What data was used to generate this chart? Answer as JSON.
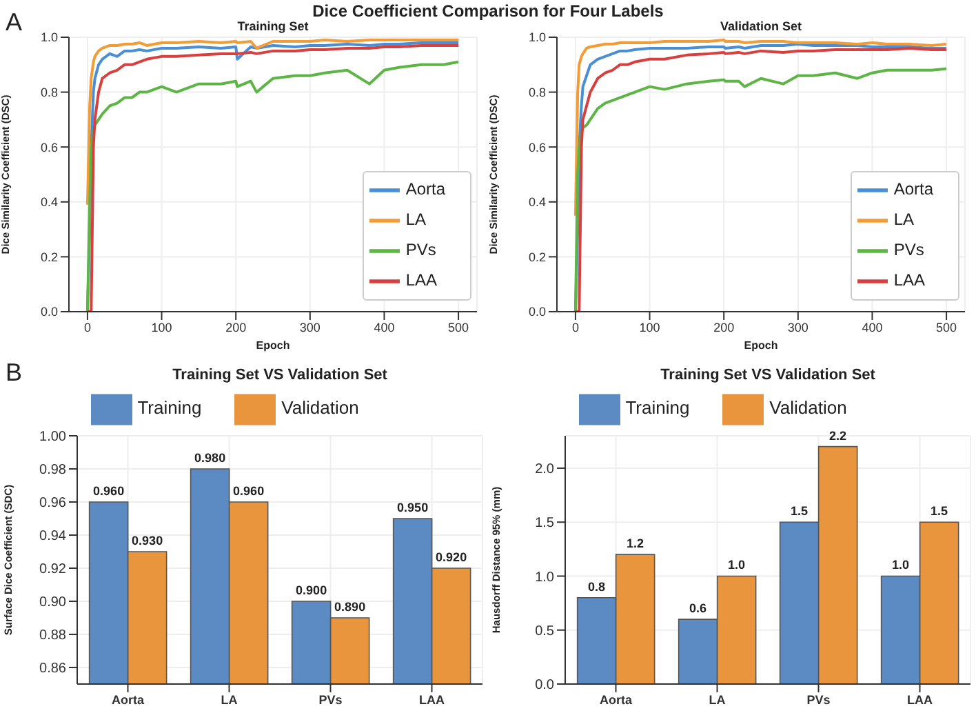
{
  "chart_data": [
    {
      "type": "line",
      "title": "Dice Coefficient Comparison for Four Labels",
      "subtitle": "Training Set",
      "xlabel": "Epoch",
      "ylabel": "Dice Similarity Coefficient (DSC)",
      "annotations": [
        "A"
      ],
      "x": [
        0,
        3,
        5,
        8,
        10,
        15,
        20,
        30,
        40,
        50,
        60,
        70,
        80,
        100,
        120,
        150,
        180,
        200,
        202,
        220,
        228,
        250,
        280,
        300,
        320,
        350,
        380,
        400,
        420,
        450,
        480,
        500
      ],
      "series": [
        {
          "name": "Aorta",
          "color": "#4a8fd6",
          "values": [
            0,
            0.3,
            0.6,
            0.8,
            0.85,
            0.9,
            0.92,
            0.94,
            0.93,
            0.95,
            0.95,
            0.955,
            0.95,
            0.96,
            0.96,
            0.965,
            0.96,
            0.965,
            0.92,
            0.965,
            0.96,
            0.97,
            0.965,
            0.97,
            0.97,
            0.975,
            0.97,
            0.975,
            0.975,
            0.98,
            0.98,
            0.98
          ]
        },
        {
          "name": "LA",
          "color": "#f29c38",
          "values": [
            0.39,
            0.75,
            0.85,
            0.91,
            0.93,
            0.95,
            0.96,
            0.97,
            0.97,
            0.975,
            0.975,
            0.98,
            0.97,
            0.98,
            0.98,
            0.985,
            0.98,
            0.985,
            0.98,
            0.985,
            0.96,
            0.985,
            0.985,
            0.985,
            0.99,
            0.985,
            0.99,
            0.99,
            0.99,
            0.99,
            0.99,
            0.99
          ]
        },
        {
          "name": "PVs",
          "color": "#5cb545",
          "values": [
            0,
            0.39,
            0.6,
            0.65,
            0.68,
            0.7,
            0.72,
            0.75,
            0.76,
            0.78,
            0.78,
            0.8,
            0.8,
            0.82,
            0.8,
            0.83,
            0.83,
            0.84,
            0.82,
            0.84,
            0.8,
            0.85,
            0.86,
            0.86,
            0.87,
            0.88,
            0.83,
            0.88,
            0.89,
            0.9,
            0.9,
            0.91
          ]
        },
        {
          "name": "LAA",
          "color": "#d8403f",
          "values": [
            0,
            0,
            0,
            0.6,
            0.7,
            0.8,
            0.85,
            0.87,
            0.88,
            0.9,
            0.9,
            0.91,
            0.92,
            0.93,
            0.93,
            0.935,
            0.94,
            0.94,
            0.94,
            0.945,
            0.94,
            0.95,
            0.95,
            0.955,
            0.955,
            0.96,
            0.96,
            0.965,
            0.965,
            0.97,
            0.97,
            0.97
          ]
        }
      ],
      "xlim": [
        -25,
        525
      ],
      "xticks": [
        0,
        100,
        200,
        300,
        400,
        500
      ],
      "ylim": [
        0,
        1
      ],
      "yticks": [
        {
          "value": 0,
          "label": "0.0"
        },
        0.2,
        0.4,
        0.6,
        0.8,
        {
          "value": 1,
          "label": "1.0"
        }
      ],
      "grid": true,
      "legend": "bottom right",
      "marker": "none",
      "line_style": "solid"
    },
    {
      "type": "line",
      "title": "Validation Set",
      "xlabel": "Epoch",
      "ylabel": "Dice Similarity Coefficient (DSC)",
      "x": [
        0,
        3,
        5,
        8,
        10,
        15,
        20,
        30,
        40,
        50,
        60,
        70,
        80,
        100,
        120,
        150,
        180,
        200,
        202,
        220,
        228,
        250,
        280,
        300,
        320,
        350,
        380,
        400,
        420,
        450,
        480,
        500
      ],
      "series": [
        {
          "name": "Aorta",
          "color": "#4a8fd6",
          "values": [
            0,
            0.3,
            0.6,
            0.75,
            0.82,
            0.86,
            0.9,
            0.92,
            0.93,
            0.94,
            0.95,
            0.95,
            0.955,
            0.96,
            0.96,
            0.96,
            0.965,
            0.965,
            0.96,
            0.965,
            0.96,
            0.97,
            0.97,
            0.975,
            0.97,
            0.97,
            0.97,
            0.965,
            0.965,
            0.965,
            0.96,
            0.96
          ]
        },
        {
          "name": "LA",
          "color": "#f29c38",
          "values": [
            0.35,
            0.8,
            0.9,
            0.93,
            0.94,
            0.96,
            0.965,
            0.97,
            0.975,
            0.975,
            0.98,
            0.98,
            0.98,
            0.98,
            0.985,
            0.985,
            0.985,
            0.99,
            0.985,
            0.985,
            0.98,
            0.985,
            0.985,
            0.98,
            0.98,
            0.98,
            0.975,
            0.98,
            0.975,
            0.975,
            0.97,
            0.975
          ]
        },
        {
          "name": "PVs",
          "color": "#5cb545",
          "values": [
            0,
            0.5,
            0.6,
            0.65,
            0.67,
            0.68,
            0.7,
            0.74,
            0.76,
            0.77,
            0.78,
            0.79,
            0.8,
            0.82,
            0.81,
            0.83,
            0.84,
            0.845,
            0.84,
            0.84,
            0.82,
            0.85,
            0.83,
            0.86,
            0.86,
            0.87,
            0.85,
            0.87,
            0.88,
            0.88,
            0.88,
            0.885
          ]
        },
        {
          "name": "LAA",
          "color": "#d8403f",
          "values": [
            0,
            0,
            0,
            0.6,
            0.7,
            0.75,
            0.8,
            0.85,
            0.87,
            0.88,
            0.9,
            0.9,
            0.91,
            0.92,
            0.92,
            0.935,
            0.94,
            0.945,
            0.94,
            0.945,
            0.94,
            0.95,
            0.945,
            0.95,
            0.95,
            0.955,
            0.955,
            0.955,
            0.955,
            0.96,
            0.955,
            0.955
          ]
        }
      ],
      "xlim": [
        -25,
        525
      ],
      "xticks": [
        0,
        100,
        200,
        300,
        400,
        500
      ],
      "ylim": [
        0,
        1
      ],
      "yticks": [
        {
          "value": 0,
          "label": "0.0"
        },
        0.2,
        0.4,
        0.6,
        0.8,
        {
          "value": 1,
          "label": "1.0"
        }
      ],
      "grid": true,
      "legend": "bottom right",
      "marker": "none",
      "line_style": "solid"
    },
    {
      "type": "bar",
      "title": "Training Set VS Validation Set",
      "ylabel": "Surface Dice Coefficient (SDC)",
      "annotations": [
        "B"
      ],
      "categories": [
        "Aorta",
        "LA",
        "PVs",
        "LAA"
      ],
      "series": [
        {
          "name": "Training",
          "color": "#5b8bc2",
          "values": [
            0.96,
            0.98,
            0.9,
            0.95
          ],
          "value_labels": [
            "0.960",
            "0.980",
            "0.900",
            "0.950"
          ]
        },
        {
          "name": "Validation",
          "color": "#e8953e",
          "values": [
            0.93,
            0.96,
            0.89,
            0.92
          ],
          "value_labels": [
            "0.930",
            "0.960",
            "0.890",
            "0.920"
          ]
        }
      ],
      "ylim": [
        0.85,
        1
      ],
      "yticks": [
        0.86,
        0.88,
        {
          "value": 0.9,
          "label": "0.90"
        },
        0.92,
        0.94,
        0.96,
        0.98,
        {
          "value": 1,
          "label": "1.00"
        }
      ],
      "grid": true,
      "legend": "top"
    },
    {
      "type": "bar",
      "title": "Training Set VS Validation Set",
      "ylabel": "Hausdorff Distance 95% (mm)",
      "categories": [
        "Aorta",
        "LA",
        "PVs",
        "LAA"
      ],
      "series": [
        {
          "name": "Training",
          "color": "#5b8bc2",
          "values": [
            0.8,
            0.6,
            1.5,
            1.0
          ],
          "value_labels": [
            "0.8",
            "0.6",
            "1.5",
            "1.0"
          ]
        },
        {
          "name": "Validation",
          "color": "#e8953e",
          "values": [
            1.2,
            1.0,
            2.2,
            1.5
          ],
          "value_labels": [
            "1.2",
            "1.0",
            "2.2",
            "1.5"
          ]
        }
      ],
      "ylim": [
        0,
        2.3
      ],
      "yticks": [
        {
          "value": 0,
          "label": "0.0"
        },
        0.5,
        {
          "value": 1,
          "label": "1.0"
        },
        1.5,
        {
          "value": 2,
          "label": "2.0"
        }
      ],
      "grid": true,
      "legend": "top"
    }
  ]
}
